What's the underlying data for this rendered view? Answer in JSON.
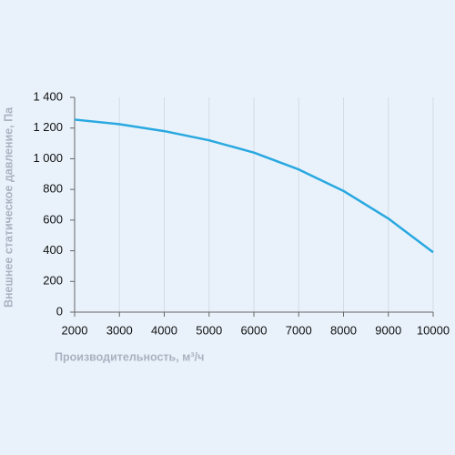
{
  "chart_data": {
    "type": "line",
    "xlabel": "Производительность, м³/ч",
    "ylabel": "Внешнее статическое давление, Па",
    "x": [
      2000,
      3000,
      4000,
      5000,
      6000,
      7000,
      8000,
      9000,
      10000
    ],
    "series": [
      {
        "color": "#29a8e0",
        "values": [
          1255,
          1225,
          1180,
          1120,
          1040,
          930,
          790,
          610,
          390
        ]
      }
    ],
    "xlim": [
      2000,
      10000
    ],
    "xticks": [
      2000,
      3000,
      4000,
      5000,
      6000,
      7000,
      8000,
      9000,
      10000
    ],
    "ylim": [
      0,
      1400
    ],
    "yticks": [
      0,
      200,
      400,
      600,
      800,
      {
        "value": 1000,
        "label": "1 000"
      },
      {
        "value": 1200,
        "label": "1 200"
      },
      {
        "value": 1400,
        "label": "1 400"
      }
    ],
    "grid": true
  }
}
